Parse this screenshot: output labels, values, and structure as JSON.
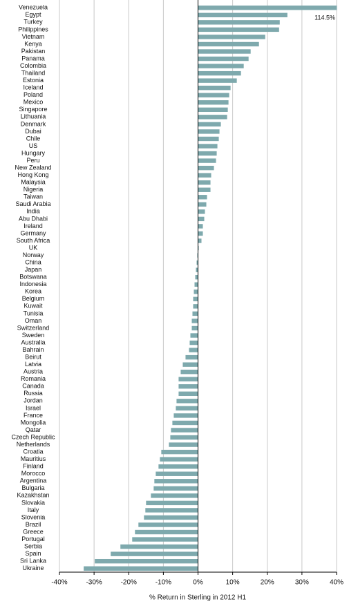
{
  "chart_data": {
    "type": "barh",
    "categories": [
      "Venezuela",
      "Egypt",
      "Turkey",
      "Philippines",
      "Vietnam",
      "Kenya",
      "Pakistan",
      "Panama",
      "Colombia",
      "Thailand",
      "Estonia",
      "Iceland",
      "Poland",
      "Mexico",
      "Singapore",
      "Lithuania",
      "Denmark",
      "Dubai",
      "Chile",
      "US",
      "Hungary",
      "Peru",
      "New Zealand",
      "Hong Kong",
      "Malaysia",
      "Nigeria",
      "Taiwan",
      "Saudi Arabia",
      "India",
      "Abu Dhabi",
      "Ireland",
      "Germany",
      "South Africa",
      "UK",
      "Norway",
      "China",
      "Japan",
      "Botswana",
      "Indonesia",
      "Korea",
      "Belgium",
      "Kuwait",
      "Tunisia",
      "Oman",
      "Switzerland",
      "Sweden",
      "Australia",
      "Bahrain",
      "Beirut",
      "Latvia",
      "Austria",
      "Romania",
      "Canada",
      "Russia",
      "Jordan",
      "Israel",
      "France",
      "Mongolia",
      "Qatar",
      "Czech Republic",
      "Netherlands",
      "Croatia",
      "Mauritius",
      "Finland",
      "Morocco",
      "Argentina",
      "Bulgaria",
      "Kazakhstan",
      "Slovakia",
      "Italy",
      "Slovenia",
      "Brazil",
      "Greece",
      "Portugal",
      "Serbia",
      "Spain",
      "Sri Lanka",
      "Ukraine"
    ],
    "values": [
      114.5,
      25.8,
      23.6,
      23.4,
      19.4,
      17.6,
      15.2,
      14.6,
      13.2,
      12.4,
      11.2,
      9.4,
      9.0,
      8.8,
      8.6,
      8.4,
      6.6,
      6.2,
      6.0,
      5.6,
      5.4,
      5.2,
      4.6,
      3.8,
      3.6,
      3.6,
      2.6,
      2.4,
      2.0,
      1.8,
      1.4,
      1.4,
      1.0,
      0.2,
      -0.2,
      -0.4,
      -0.6,
      -0.8,
      -1.0,
      -1.2,
      -1.4,
      -1.4,
      -1.6,
      -1.8,
      -1.8,
      -2.2,
      -2.4,
      -2.6,
      -3.6,
      -4.4,
      -5.0,
      -5.6,
      -5.6,
      -5.6,
      -6.2,
      -6.4,
      -7.0,
      -7.4,
      -7.8,
      -8.0,
      -8.4,
      -10.6,
      -11.0,
      -11.4,
      -12.2,
      -12.6,
      -12.8,
      -13.6,
      -15.0,
      -15.2,
      -15.6,
      -17.2,
      -18.2,
      -19.0,
      -22.4,
      -25.2,
      -29.8,
      -33.0
    ],
    "value_labels": [
      "114.5%",
      null,
      null,
      null,
      null,
      null,
      null,
      null,
      null,
      null,
      null,
      null,
      null,
      null,
      null,
      null,
      null,
      null,
      null,
      null,
      null,
      null,
      null,
      null,
      null,
      null,
      null,
      null,
      null,
      null,
      null,
      null,
      null,
      null,
      null,
      null,
      null,
      null,
      null,
      null,
      null,
      null,
      null,
      null,
      null,
      null,
      null,
      null,
      null,
      null,
      null,
      null,
      null,
      null,
      null,
      null,
      null,
      null,
      null,
      null,
      null,
      null,
      null,
      null,
      null,
      null,
      null,
      null,
      null,
      null,
      null,
      null,
      null,
      null,
      null,
      null,
      null,
      null
    ],
    "color": "#7ea9ad",
    "xlim": [
      -40,
      40
    ],
    "xticks": [
      {
        "value": -40,
        "label": "-40%"
      },
      {
        "value": -30,
        "label": "-30%"
      },
      {
        "value": -20,
        "label": "-20%"
      },
      {
        "value": -10,
        "label": "-10%"
      },
      {
        "value": 0,
        "label": "0%"
      },
      {
        "value": 10,
        "label": "10%"
      },
      {
        "value": 20,
        "label": "20%"
      },
      {
        "value": 30,
        "label": "30%"
      },
      {
        "value": 40,
        "label": "40%"
      }
    ],
    "xlabel": "% Return in Sterling in 2012 H1",
    "grid": true
  }
}
